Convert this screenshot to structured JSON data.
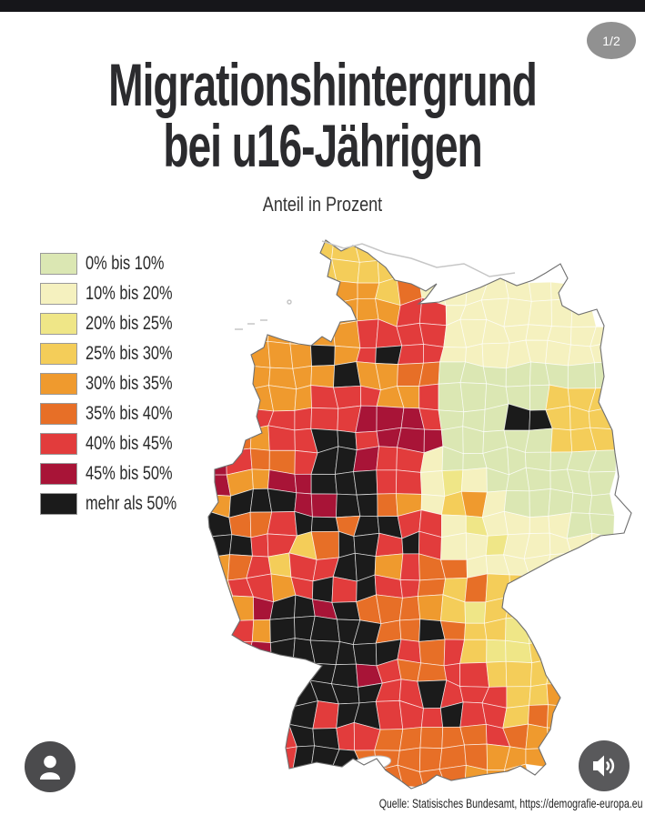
{
  "page": {
    "top_bar_color": "#16161a",
    "background": "#ffffff"
  },
  "badge": {
    "label": "1/2",
    "bg": "#919191",
    "fg": "#ffffff"
  },
  "header": {
    "title_line1": "Migrationshintergrund",
    "title_line2": "bei u16-Jährigen",
    "subtitle": "Anteil in Prozent",
    "text_color": "#2b2b2e"
  },
  "legend_title": "",
  "map": {
    "classes": [
      {
        "key": "1",
        "label": "0% bis 10%",
        "color": "#dbe7b3"
      },
      {
        "key": "2",
        "label": "10% bis 20%",
        "color": "#f5f1bf"
      },
      {
        "key": "3",
        "label": "20% bis 25%",
        "color": "#efe687"
      },
      {
        "key": "4",
        "label": "25% bis 30%",
        "color": "#f4cd59"
      },
      {
        "key": "5",
        "label": "30% bis 35%",
        "color": "#ef9a2e"
      },
      {
        "key": "6",
        "label": "35% bis 40%",
        "color": "#e76f27"
      },
      {
        "key": "7",
        "label": "40% bis 45%",
        "color": "#e23c3c"
      },
      {
        "key": "8",
        "label": "45% bis 50%",
        "color": "#a81437"
      },
      {
        "key": "9",
        "label": "mehr als 50%",
        "color": "#1b1b1b"
      }
    ],
    "outside_char": ".",
    "grid": [
      "....44..............",
      "....44444...........",
      "...44455462.........",
      "...44455577222222...",
      "..5555577772222222..",
      "..5559579772222222..",
      "..5555955661111111..",
      ".55557775571111144..",
      ".57777788871119944..",
      "665779978881111144..",
      "876679987721111111..",
      "855889997723211111..",
      "599988996524521111..",
      "966799699772322221..",
      ".97746997972232222..",
      "56747799576622222...",
      "577579797764644.....",
      "758998966654344.....",
      "7759999966964433....",
      "6789999997674334....",
      ".779999876677444....",
      ".7989999779777445...",
      "..799799777977465...",
      "...7997766666765....",
      "...799..666665......",
      ".........66..5......"
    ]
  },
  "footer": {
    "source": "Quelle: Statisisches Bundesamt, https://demografie-europa.eu"
  },
  "controls": {
    "avatar_icon": "person-icon",
    "sound_icon": "speaker-icon"
  }
}
